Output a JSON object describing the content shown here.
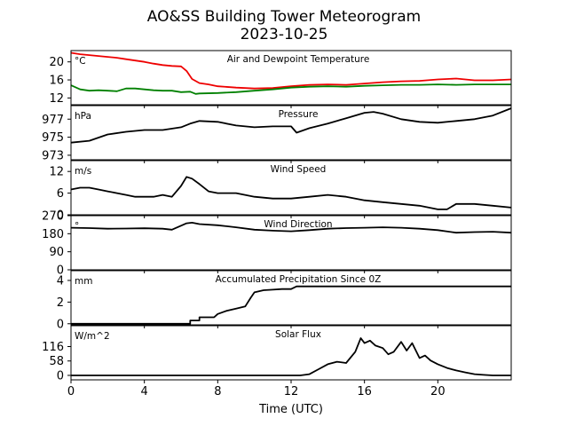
{
  "title": "AO&SS Building Tower Meteorogram",
  "subtitle": "2023-10-25",
  "xlabel": "Time (UTC)",
  "colors": {
    "temperature": "#ee0000",
    "dewpoint": "#008000",
    "line": "#000000"
  },
  "chart_data": [
    {
      "type": "line",
      "title": "Air and Dewpoint Temperature",
      "ylabel": "°C",
      "xlim": [
        0,
        24
      ],
      "ylim": [
        10.5,
        22.5
      ],
      "yticks": [
        12,
        16,
        20
      ],
      "grid": false,
      "series": [
        {
          "name": "",
          "color": "#ee0000",
          "x": [
            0,
            0.5,
            1,
            1.5,
            2,
            2.5,
            3,
            3.5,
            4,
            4.5,
            5,
            5.5,
            6,
            6.3,
            6.6,
            7,
            7.5,
            8,
            9,
            10,
            11,
            12,
            13,
            14,
            15,
            16,
            17,
            18,
            19,
            20,
            21,
            22,
            23,
            24
          ],
          "y": [
            22.0,
            21.7,
            21.5,
            21.3,
            21.1,
            20.9,
            20.6,
            20.3,
            20.0,
            19.6,
            19.3,
            19.1,
            19.0,
            18.0,
            16.2,
            15.3,
            15.0,
            14.6,
            14.3,
            14.1,
            14.2,
            14.6,
            14.9,
            15.0,
            14.9,
            15.2,
            15.5,
            15.7,
            15.8,
            16.1,
            16.3,
            15.9,
            15.9,
            16.1
          ]
        },
        {
          "name": "",
          "color": "#008000",
          "x": [
            0,
            0.5,
            1,
            1.5,
            2,
            2.5,
            3,
            3.5,
            4,
            4.5,
            5,
            5.5,
            6,
            6.5,
            6.8,
            7,
            8,
            9,
            10,
            11,
            12,
            13,
            14,
            15,
            16,
            17,
            18,
            19,
            20,
            21,
            22,
            23,
            24
          ],
          "y": [
            14.8,
            13.9,
            13.6,
            13.7,
            13.6,
            13.5,
            14.1,
            14.1,
            13.9,
            13.7,
            13.6,
            13.6,
            13.3,
            13.4,
            12.9,
            13.0,
            13.1,
            13.3,
            13.6,
            13.9,
            14.3,
            14.5,
            14.6,
            14.5,
            14.7,
            14.8,
            14.9,
            14.9,
            15.0,
            14.9,
            15.0,
            15.0,
            15.0
          ]
        }
      ]
    },
    {
      "type": "line",
      "title": "Pressure",
      "ylabel": "hPa",
      "xlim": [
        0,
        24
      ],
      "ylim": [
        972.5,
        978.5
      ],
      "yticks": [
        973,
        975,
        977
      ],
      "grid": false,
      "series": [
        {
          "name": "",
          "color": "#000000",
          "x": [
            0,
            1,
            2,
            3,
            4,
            5,
            6,
            6.5,
            7,
            8,
            9,
            10,
            11,
            12,
            12.3,
            13,
            14,
            15,
            16,
            16.5,
            17,
            18,
            19,
            20,
            21,
            22,
            23,
            24
          ],
          "y": [
            974.4,
            974.6,
            975.3,
            975.6,
            975.8,
            975.8,
            976.1,
            976.5,
            976.8,
            976.7,
            976.3,
            976.1,
            976.2,
            976.2,
            975.5,
            976.0,
            976.5,
            977.1,
            977.7,
            977.8,
            977.6,
            977.0,
            976.7,
            976.6,
            976.8,
            977.0,
            977.4,
            978.2
          ]
        }
      ]
    },
    {
      "type": "line",
      "title": "Wind Speed",
      "ylabel": "m/s",
      "xlim": [
        0,
        24
      ],
      "ylim": [
        0,
        15
      ],
      "yticks": [
        0,
        6,
        12
      ],
      "grid": false,
      "series": [
        {
          "name": "",
          "color": "#000000",
          "x": [
            0,
            0.5,
            1,
            1.5,
            2,
            2.5,
            3,
            3.5,
            4,
            4.5,
            5,
            5.5,
            6,
            6.3,
            6.6,
            7,
            7.5,
            8,
            8.5,
            9,
            10,
            11,
            12,
            13,
            14,
            15,
            16,
            17,
            18,
            19,
            20,
            20.5,
            21,
            22,
            23,
            24
          ],
          "y": [
            7.0,
            7.5,
            7.5,
            7.0,
            6.5,
            6.0,
            5.5,
            5.0,
            5.0,
            5.0,
            5.5,
            5.0,
            8.0,
            10.5,
            10.0,
            8.5,
            6.5,
            6.0,
            6.0,
            6.0,
            5.0,
            4.5,
            4.5,
            5.0,
            5.5,
            5.0,
            4.0,
            3.5,
            3.0,
            2.5,
            1.5,
            1.5,
            3.0,
            3.0,
            2.5,
            2.0
          ]
        }
      ]
    },
    {
      "type": "line",
      "title": "Wind Direction",
      "ylabel": "°",
      "xlim": [
        0,
        24
      ],
      "ylim": [
        0,
        270
      ],
      "yticks": [
        0,
        90,
        180,
        270
      ],
      "grid": false,
      "series": [
        {
          "name": "",
          "color": "#000000",
          "x": [
            0,
            1,
            2,
            3,
            4,
            5,
            5.5,
            6,
            6.3,
            6.6,
            7,
            8,
            9,
            10,
            11,
            12,
            13,
            14,
            15,
            16,
            17,
            18,
            19,
            20,
            21,
            22,
            23,
            24
          ],
          "y": [
            210,
            208,
            205,
            206,
            207,
            205,
            200,
            220,
            232,
            235,
            228,
            222,
            212,
            200,
            195,
            192,
            198,
            205,
            208,
            210,
            212,
            210,
            205,
            198,
            185,
            188,
            190,
            185
          ]
        }
      ]
    },
    {
      "type": "line",
      "title": "Accumulated Precipitation Since 0Z",
      "ylabel": "mm",
      "xlim": [
        0,
        24
      ],
      "ylim": [
        -0.1,
        4.9
      ],
      "yticks": [
        0,
        2,
        4
      ],
      "grid": false,
      "series": [
        {
          "name": "",
          "color": "#000000",
          "x": [
            0,
            6.5,
            6.5,
            7,
            7,
            7.8,
            8,
            8.5,
            9,
            9.5,
            9.8,
            10,
            10.5,
            11,
            11.5,
            12,
            12.3,
            24
          ],
          "y": [
            0,
            0,
            0.3,
            0.3,
            0.6,
            0.6,
            0.9,
            1.2,
            1.4,
            1.6,
            2.4,
            2.9,
            3.1,
            3.15,
            3.2,
            3.2,
            3.45,
            3.45
          ]
        }
      ]
    },
    {
      "type": "line",
      "title": "Solar Flux",
      "ylabel": "W/m^2",
      "xlim": [
        0,
        24
      ],
      "ylim": [
        -18,
        200
      ],
      "yticks": [
        0,
        58,
        116
      ],
      "grid": false,
      "series": [
        {
          "name": "",
          "color": "#000000",
          "x": [
            0,
            12.5,
            13,
            13.5,
            14,
            14.5,
            15,
            15.5,
            15.8,
            16,
            16.3,
            16.6,
            17,
            17.3,
            17.6,
            18,
            18.3,
            18.6,
            19,
            19.3,
            19.6,
            20,
            20.5,
            21,
            21.5,
            22,
            22.5,
            23,
            24
          ],
          "y": [
            0,
            0,
            5,
            25,
            45,
            55,
            50,
            95,
            150,
            130,
            140,
            120,
            110,
            85,
            95,
            135,
            100,
            130,
            70,
            80,
            60,
            45,
            30,
            20,
            12,
            5,
            2,
            0,
            0
          ]
        }
      ]
    }
  ]
}
